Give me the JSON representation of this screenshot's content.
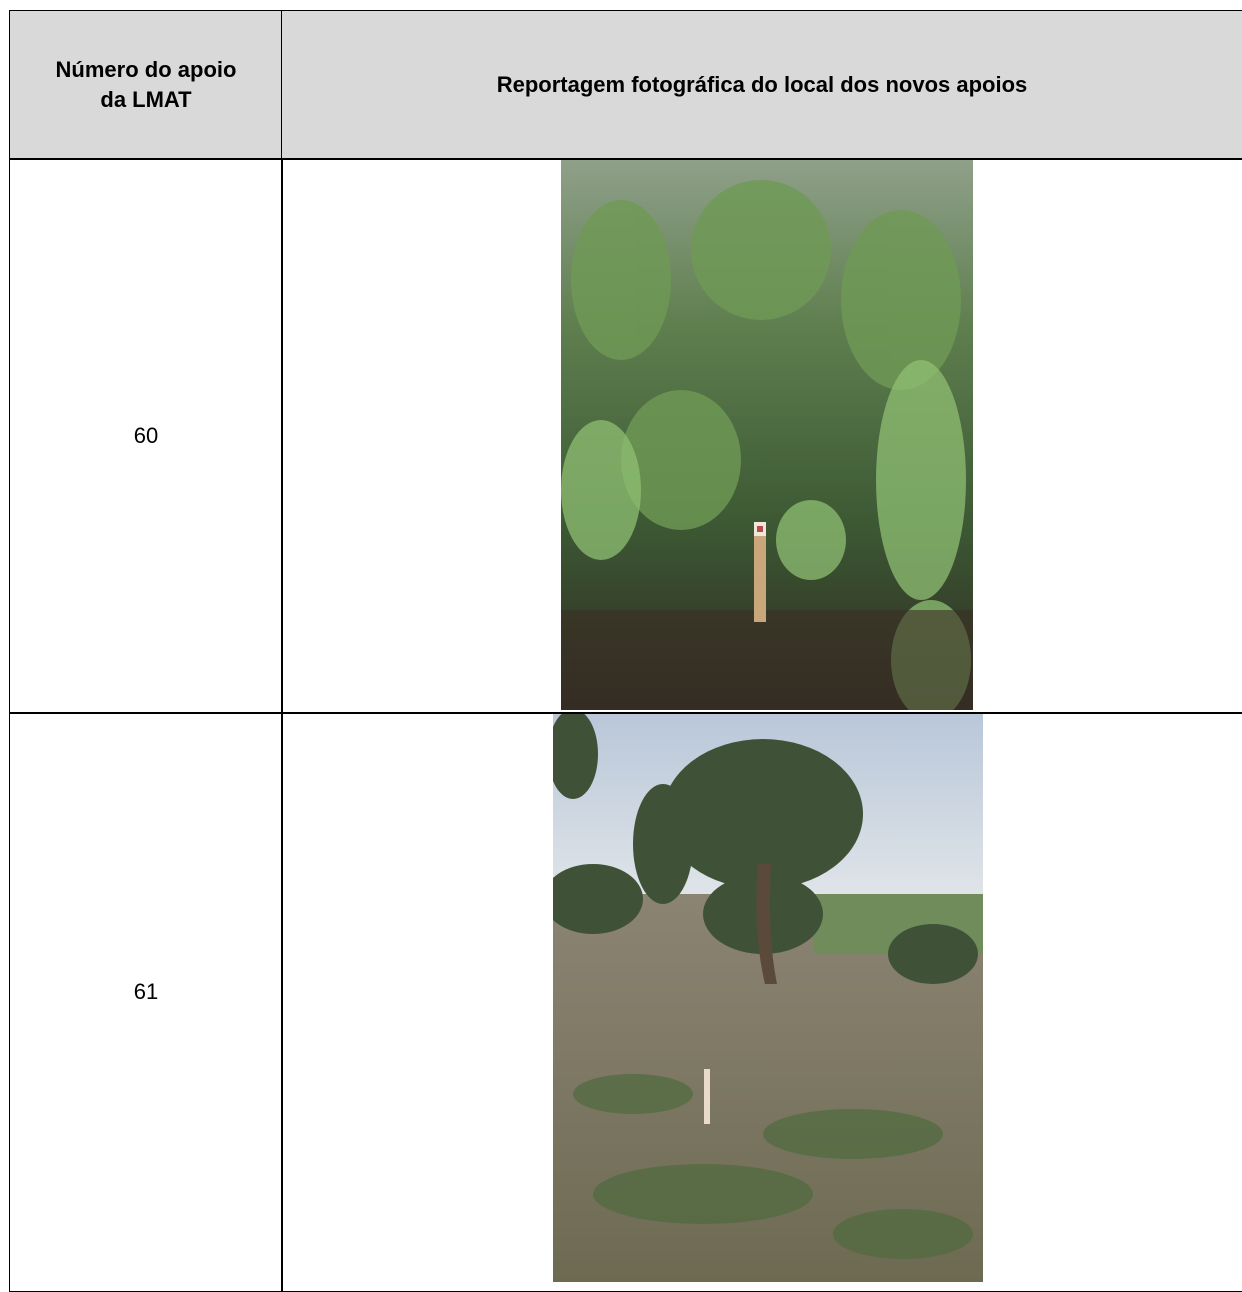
{
  "table": {
    "header": [
      "Número do apoio da LMAT",
      "Reportagem fotográfica do local dos novos apoios"
    ],
    "rows": [
      [
        "60"
      ],
      [
        "61"
      ]
    ]
  }
}
